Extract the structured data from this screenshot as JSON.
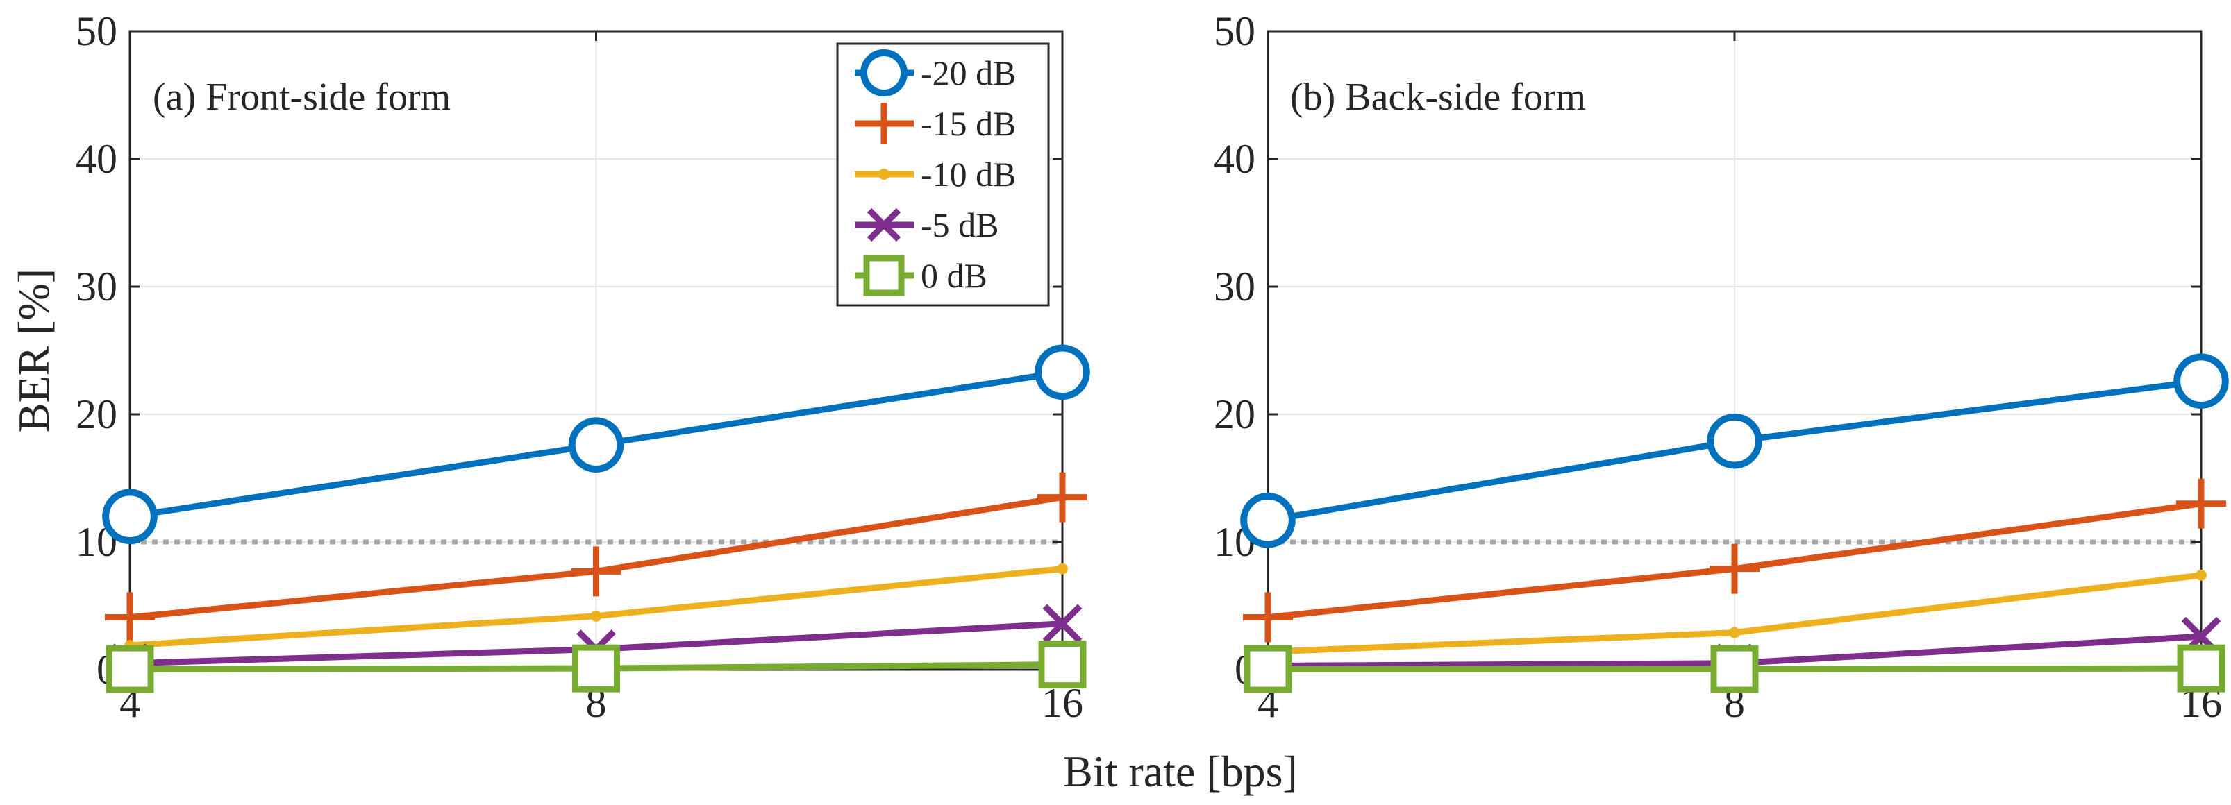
{
  "chart_data": [
    {
      "type": "line",
      "panel_label": "(a) Front-side form",
      "x": [
        4,
        8,
        16
      ],
      "x_tick_labels": [
        "4",
        "8",
        "16"
      ],
      "ylabel": "BER [%]",
      "ylim": [
        0,
        50
      ],
      "y_ticks": [
        0,
        10,
        20,
        30,
        40,
        50
      ],
      "y_tick_labels": [
        "0",
        "10",
        "20",
        "30",
        "40",
        "50"
      ],
      "grid": true,
      "threshold": 10,
      "legend_position": "top-right",
      "series": [
        {
          "name": "-20 dB",
          "values": [
            12.0,
            17.6,
            23.3
          ],
          "color": "#0072BD",
          "marker": "circle"
        },
        {
          "name": "-15 dB",
          "values": [
            4.1,
            7.7,
            13.5
          ],
          "color": "#D95319",
          "marker": "plus"
        },
        {
          "name": "-10 dB",
          "values": [
            1.9,
            4.2,
            7.9
          ],
          "color": "#EDB120",
          "marker": "dot"
        },
        {
          "name": "-5 dB",
          "values": [
            0.5,
            1.6,
            3.6
          ],
          "color": "#7E2F8E",
          "marker": "x"
        },
        {
          "name": "0 dB",
          "values": [
            0.05,
            0.1,
            0.4
          ],
          "color": "#77AC30",
          "marker": "square"
        }
      ]
    },
    {
      "type": "line",
      "panel_label": "(b) Back-side form",
      "x": [
        4,
        8,
        16
      ],
      "x_tick_labels": [
        "4",
        "8",
        "16"
      ],
      "ylabel": "",
      "ylim": [
        0,
        50
      ],
      "y_ticks": [
        0,
        10,
        20,
        30,
        40,
        50
      ],
      "y_tick_labels": [
        "0",
        "10",
        "20",
        "30",
        "40",
        "50"
      ],
      "grid": true,
      "threshold": 10,
      "series": [
        {
          "name": "-20 dB",
          "values": [
            11.7,
            17.9,
            22.6
          ],
          "color": "#0072BD",
          "marker": "circle"
        },
        {
          "name": "-15 dB",
          "values": [
            4.1,
            7.9,
            13.0
          ],
          "color": "#D95319",
          "marker": "plus"
        },
        {
          "name": "-10 dB",
          "values": [
            1.4,
            2.9,
            7.4
          ],
          "color": "#EDB120",
          "marker": "dot"
        },
        {
          "name": "-5 dB",
          "values": [
            0.3,
            0.5,
            2.6
          ],
          "color": "#7E2F8E",
          "marker": "x"
        },
        {
          "name": "0 dB",
          "values": [
            0.05,
            0.05,
            0.1
          ],
          "color": "#77AC30",
          "marker": "square"
        }
      ]
    }
  ],
  "shared_xlabel": "Bit rate [bps]"
}
